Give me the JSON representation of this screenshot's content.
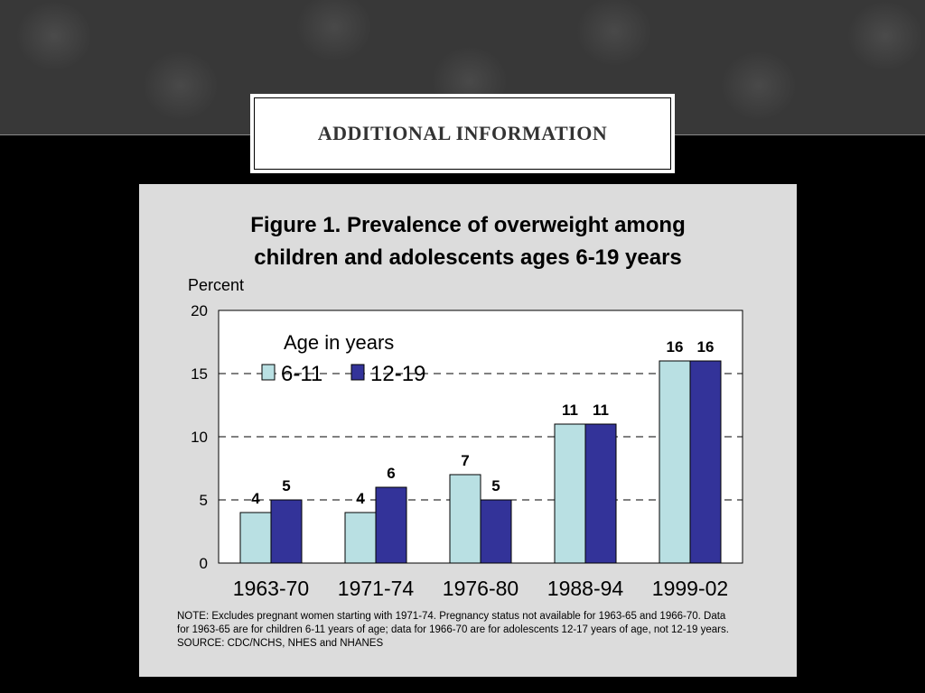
{
  "slide": {
    "title": "ADDITIONAL INFORMATION"
  },
  "colors": {
    "series_6_11": "#b9e0e3",
    "series_12_19": "#333399",
    "plot_bg": "#ffffff",
    "figure_bg": "#dcdcdc"
  },
  "chart_data": {
    "type": "bar",
    "title_line1": "Figure 1. Prevalence of overweight among",
    "title_line2": "children and adolescents ages 6-19 years",
    "ylabel": "Percent",
    "xlabel": "",
    "ylim": [
      0,
      20
    ],
    "yticks": [
      "0",
      "5",
      "10",
      "15",
      "20"
    ],
    "categories": [
      "1963-70",
      "1971-74",
      "1976-80",
      "1988-94",
      "1999-02"
    ],
    "series": [
      {
        "name": "6-11",
        "values": [
          4,
          4,
          7,
          11,
          16
        ]
      },
      {
        "name": "12-19",
        "values": [
          5,
          6,
          5,
          11,
          16
        ]
      }
    ],
    "legend_title": "Age in years",
    "legend_placement": "top-left",
    "grid": "dashed horizontal at 5, 10, 15",
    "note_line1": "NOTE:  Excludes pregnant women starting with 1971-74.  Pregnancy status not available for 1963-65 and 1966-70.  Data",
    "note_line2": "for 1963-65 are for children 6-11 years of age; data for 1966-70 are for adolescents 12-17 years of age, not 12-19 years.",
    "source": "SOURCE: CDC/NCHS, NHES and NHANES"
  }
}
